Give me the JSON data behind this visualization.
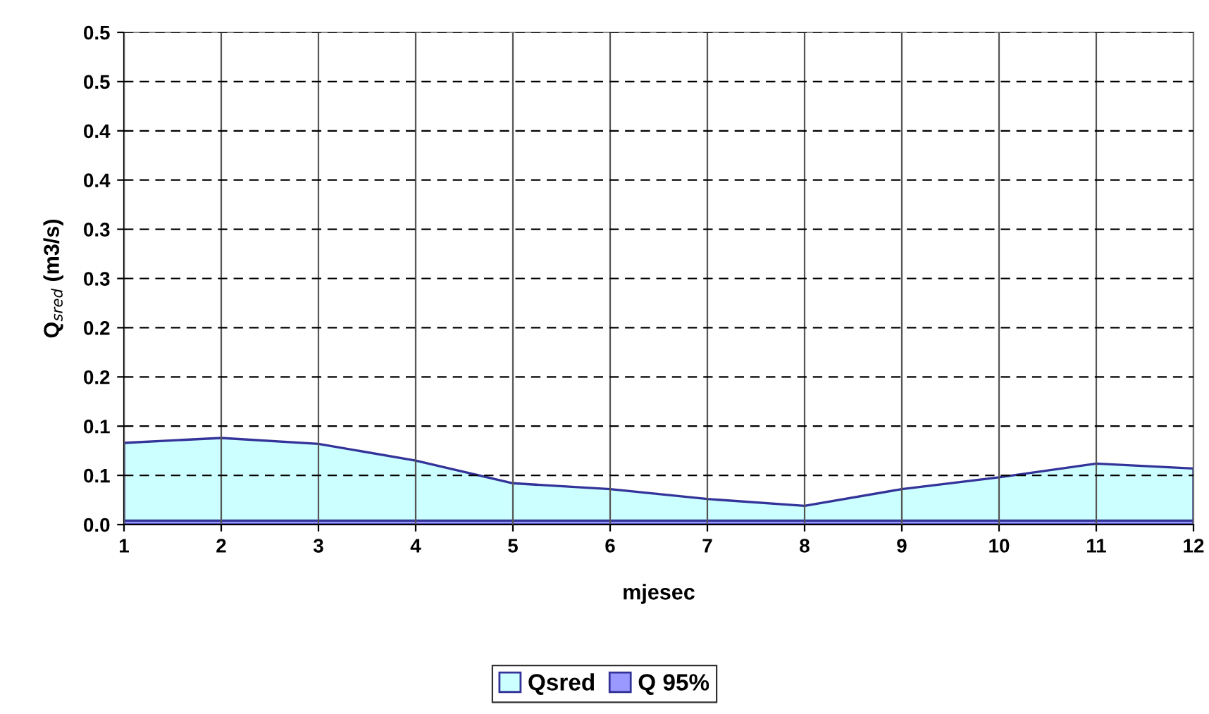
{
  "chart_data": {
    "type": "area",
    "xlabel": "mjesec",
    "ylabel": "Q$_{sred}$ (m3/s)",
    "x": [
      1,
      2,
      3,
      4,
      5,
      6,
      7,
      8,
      9,
      10,
      11,
      12
    ],
    "xlim": [
      1,
      12
    ],
    "xticks": [
      1,
      2,
      3,
      4,
      5,
      6,
      7,
      8,
      9,
      10,
      11,
      12
    ],
    "ylim": [
      0,
      0.5
    ],
    "yticks": [
      {
        "value": 0,
        "label": "0.0"
      },
      {
        "value": 0.05,
        "label": "0.1"
      },
      {
        "value": 0.1,
        "label": "0.1"
      },
      {
        "value": 0.15,
        "label": "0.2"
      },
      {
        "value": 0.2,
        "label": "0.2"
      },
      {
        "value": 0.25,
        "label": "0.3"
      },
      {
        "value": 0.3,
        "label": "0.3"
      },
      {
        "value": 0.35,
        "label": "0.4"
      },
      {
        "value": 0.4,
        "label": "0.4"
      },
      {
        "value": 0.45,
        "label": "0.5"
      },
      {
        "value": 0.5,
        "label": "0.5"
      }
    ],
    "grid": true,
    "legend": "bottom",
    "series": [
      {
        "name": "Qsred",
        "color": "#ccffff",
        "values": [
          0.083,
          0.088,
          0.082,
          0.065,
          0.042,
          0.036,
          0.026,
          0.019,
          0.036,
          0.048,
          0.062,
          0.057
        ]
      },
      {
        "name": "Q 95%",
        "color": "#9999ff",
        "values": [
          0.004,
          0.004,
          0.004,
          0.004,
          0.004,
          0.004,
          0.004,
          0.004,
          0.004,
          0.004,
          0.004,
          0.004
        ]
      }
    ]
  }
}
